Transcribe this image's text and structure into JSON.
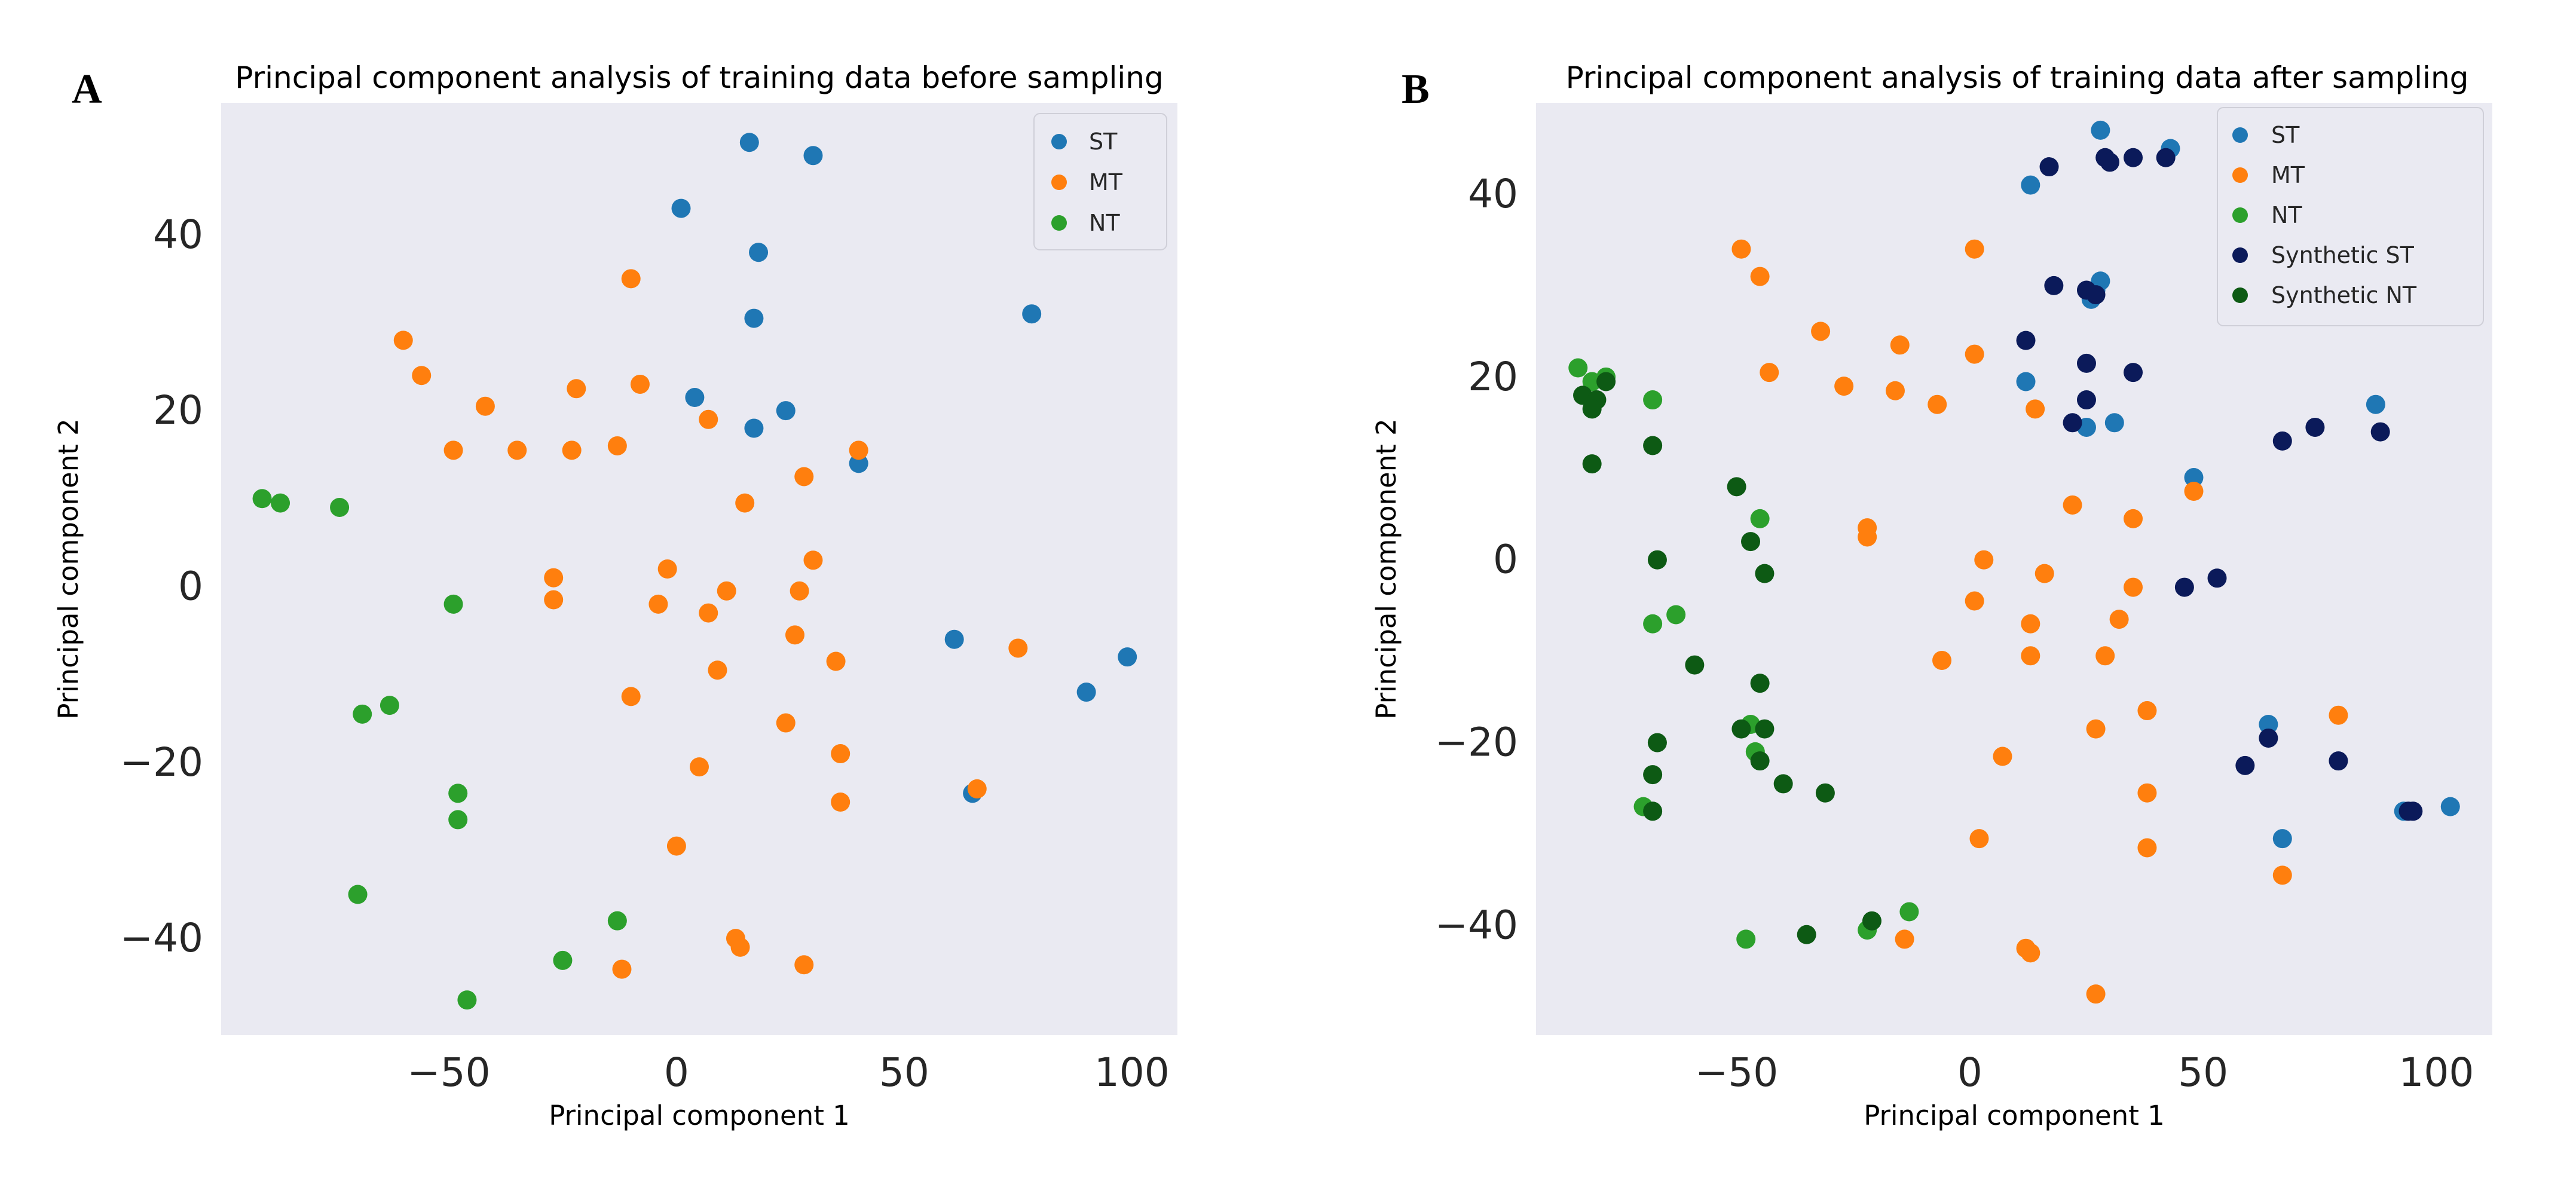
{
  "colors": {
    "ST": "#1f77b4",
    "MT": "#ff7f0e",
    "NT": "#2ca02c",
    "Synthetic ST": "#0b1a5a",
    "Synthetic NT": "#0d5a14",
    "plot_bg": "#eaeaf2",
    "tick_text": "#262626"
  },
  "chart_data": [
    {
      "panel": "A",
      "type": "scatter",
      "title": "Principal component analysis of training data before sampling",
      "xlabel": "Principal component 1",
      "ylabel": "Principal component 2",
      "xlim": [
        -100,
        110
      ],
      "ylim": [
        -51,
        55
      ],
      "xticks": [
        -50,
        0,
        50,
        100
      ],
      "yticks": [
        -40,
        -20,
        0,
        20,
        40
      ],
      "xtick_labels": [
        "−50",
        "0",
        "50",
        "100"
      ],
      "ytick_labels": [
        "−40",
        "−20",
        "0",
        "20",
        "40"
      ],
      "grid": false,
      "legend_position": "top-right",
      "series": [
        {
          "name": "ST",
          "points": [
            [
              16,
              50.5
            ],
            [
              30,
              49
            ],
            [
              1,
              43
            ],
            [
              18,
              38
            ],
            [
              17,
              30.5
            ],
            [
              78,
              31
            ],
            [
              4,
              21.5
            ],
            [
              24,
              20
            ],
            [
              17,
              18
            ],
            [
              40,
              14
            ],
            [
              61,
              -6
            ],
            [
              65,
              -23.5
            ],
            [
              90,
              -12
            ],
            [
              99,
              -8
            ]
          ]
        },
        {
          "name": "MT",
          "points": [
            [
              -10,
              35
            ],
            [
              -60,
              28
            ],
            [
              -56,
              24
            ],
            [
              -42,
              20.5
            ],
            [
              -22,
              22.5
            ],
            [
              -8,
              23
            ],
            [
              -49,
              15.5
            ],
            [
              -35,
              15.5
            ],
            [
              -23,
              15.5
            ],
            [
              -13,
              16
            ],
            [
              7,
              19
            ],
            [
              40,
              15.5
            ],
            [
              28,
              12.5
            ],
            [
              15,
              9.5
            ],
            [
              30,
              3
            ],
            [
              -27,
              1
            ],
            [
              -2,
              2
            ],
            [
              11,
              -0.5
            ],
            [
              27,
              -0.5
            ],
            [
              -27,
              -1.5
            ],
            [
              -4,
              -2
            ],
            [
              7,
              -3
            ],
            [
              26,
              -5.5
            ],
            [
              35,
              -8.5
            ],
            [
              9,
              -9.5
            ],
            [
              -10,
              -12.5
            ],
            [
              24,
              -15.5
            ],
            [
              36,
              -19
            ],
            [
              5,
              -20.5
            ],
            [
              75,
              -7
            ],
            [
              66,
              -23
            ],
            [
              36,
              -24.5
            ],
            [
              0,
              -29.5
            ],
            [
              13,
              -40
            ],
            [
              14,
              -41
            ],
            [
              -12,
              -43.5
            ],
            [
              28,
              -43
            ]
          ]
        },
        {
          "name": "NT",
          "points": [
            [
              -91,
              10
            ],
            [
              -87,
              9.5
            ],
            [
              -74,
              9
            ],
            [
              -49,
              -2
            ],
            [
              -69,
              -14.5
            ],
            [
              -63,
              -13.5
            ],
            [
              -48,
              -23.5
            ],
            [
              -48,
              -26.5
            ],
            [
              -70,
              -35
            ],
            [
              -13,
              -38
            ],
            [
              -25,
              -42.5
            ],
            [
              -46,
              -47
            ]
          ]
        }
      ]
    },
    {
      "panel": "B",
      "type": "scatter",
      "title": "Principal component analysis of training data after sampling",
      "xlabel": "Principal component 1",
      "ylabel": "Principal component 2",
      "xlim": [
        -93,
        112
      ],
      "ylim": [
        -52,
        50
      ],
      "xticks": [
        -50,
        0,
        50,
        100
      ],
      "yticks": [
        -40,
        -20,
        0,
        20,
        40
      ],
      "xtick_labels": [
        "−50",
        "0",
        "50",
        "100"
      ],
      "ytick_labels": [
        "−40",
        "−20",
        "0",
        "20",
        "40"
      ],
      "grid": false,
      "legend_position": "top-right",
      "series": [
        {
          "name": "ST",
          "points": [
            [
              28,
              47
            ],
            [
              43,
              45
            ],
            [
              13,
              41
            ],
            [
              28,
              30.5
            ],
            [
              27,
              29.5
            ],
            [
              26,
              28.5
            ],
            [
              12,
              19.5
            ],
            [
              25,
              14.5
            ],
            [
              31,
              15
            ],
            [
              48,
              9
            ],
            [
              87,
              17
            ],
            [
              64,
              -18
            ],
            [
              67,
              -30.5
            ],
            [
              93,
              -27.5
            ],
            [
              103,
              -27
            ]
          ]
        },
        {
          "name": "MT",
          "points": [
            [
              -49,
              34
            ],
            [
              -45,
              31
            ],
            [
              1,
              34
            ],
            [
              -32,
              25
            ],
            [
              -15,
              23.5
            ],
            [
              -27,
              19
            ],
            [
              -16,
              18.5
            ],
            [
              -7,
              17
            ],
            [
              1,
              22.5
            ],
            [
              14,
              16.5
            ],
            [
              -43,
              20.5
            ],
            [
              22,
              6
            ],
            [
              35,
              4.5
            ],
            [
              48,
              7.5
            ],
            [
              -22,
              3.5
            ],
            [
              -22,
              2.5
            ],
            [
              3,
              0
            ],
            [
              16,
              -1.5
            ],
            [
              35,
              -3
            ],
            [
              1,
              -4.5
            ],
            [
              13,
              -7
            ],
            [
              32,
              -6.5
            ],
            [
              -6,
              -11
            ],
            [
              13,
              -10.5
            ],
            [
              29,
              -10.5
            ],
            [
              7,
              -21.5
            ],
            [
              27,
              -18.5
            ],
            [
              38,
              -16.5
            ],
            [
              79,
              -17
            ],
            [
              38,
              -25.5
            ],
            [
              2,
              -30.5
            ],
            [
              38,
              -31.5
            ],
            [
              67,
              -34.5
            ],
            [
              12,
              -42.5
            ],
            [
              13,
              -43
            ],
            [
              -14,
              -41.5
            ],
            [
              27,
              -47.5
            ]
          ]
        },
        {
          "name": "NT",
          "points": [
            [
              -84,
              21
            ],
            [
              -81,
              19.5
            ],
            [
              -78,
              20
            ],
            [
              -68,
              17.5
            ],
            [
              -45,
              4.5
            ],
            [
              -63,
              -6
            ],
            [
              -68,
              -7
            ],
            [
              -47,
              -18
            ],
            [
              -46,
              -21
            ],
            [
              -70,
              -27
            ],
            [
              -13,
              -38.5
            ],
            [
              -22,
              -40.5
            ],
            [
              -48,
              -41.5
            ]
          ]
        },
        {
          "name": "Synthetic ST",
          "points": [
            [
              17,
              43
            ],
            [
              29,
              44
            ],
            [
              30,
              43.5
            ],
            [
              35,
              44
            ],
            [
              42,
              44
            ],
            [
              18,
              30
            ],
            [
              25,
              29.5
            ],
            [
              27,
              29
            ],
            [
              12,
              24
            ],
            [
              25,
              21.5
            ],
            [
              35,
              20.5
            ],
            [
              25,
              17.5
            ],
            [
              22,
              15
            ],
            [
              74,
              14.5
            ],
            [
              67,
              13
            ],
            [
              88,
              14
            ],
            [
              46,
              -3
            ],
            [
              53,
              -2
            ],
            [
              64,
              -19.5
            ],
            [
              59,
              -22.5
            ],
            [
              79,
              -22
            ],
            [
              94,
              -27.5
            ],
            [
              95,
              -27.5
            ]
          ]
        },
        {
          "name": "Synthetic NT",
          "points": [
            [
              -83,
              18
            ],
            [
              -80,
              17.5
            ],
            [
              -81,
              16.5
            ],
            [
              -78,
              19.5
            ],
            [
              -68,
              12.5
            ],
            [
              -81,
              10.5
            ],
            [
              -50,
              8
            ],
            [
              -47,
              2
            ],
            [
              -67,
              0
            ],
            [
              -44,
              -1.5
            ],
            [
              -59,
              -11.5
            ],
            [
              -45,
              -13.5
            ],
            [
              -49,
              -18.5
            ],
            [
              -44,
              -18.5
            ],
            [
              -67,
              -20
            ],
            [
              -45,
              -22
            ],
            [
              -68,
              -23.5
            ],
            [
              -40,
              -24.5
            ],
            [
              -31,
              -25.5
            ],
            [
              -68,
              -27.5
            ],
            [
              -35,
              -41
            ],
            [
              -21,
              -39.5
            ]
          ]
        }
      ]
    }
  ]
}
